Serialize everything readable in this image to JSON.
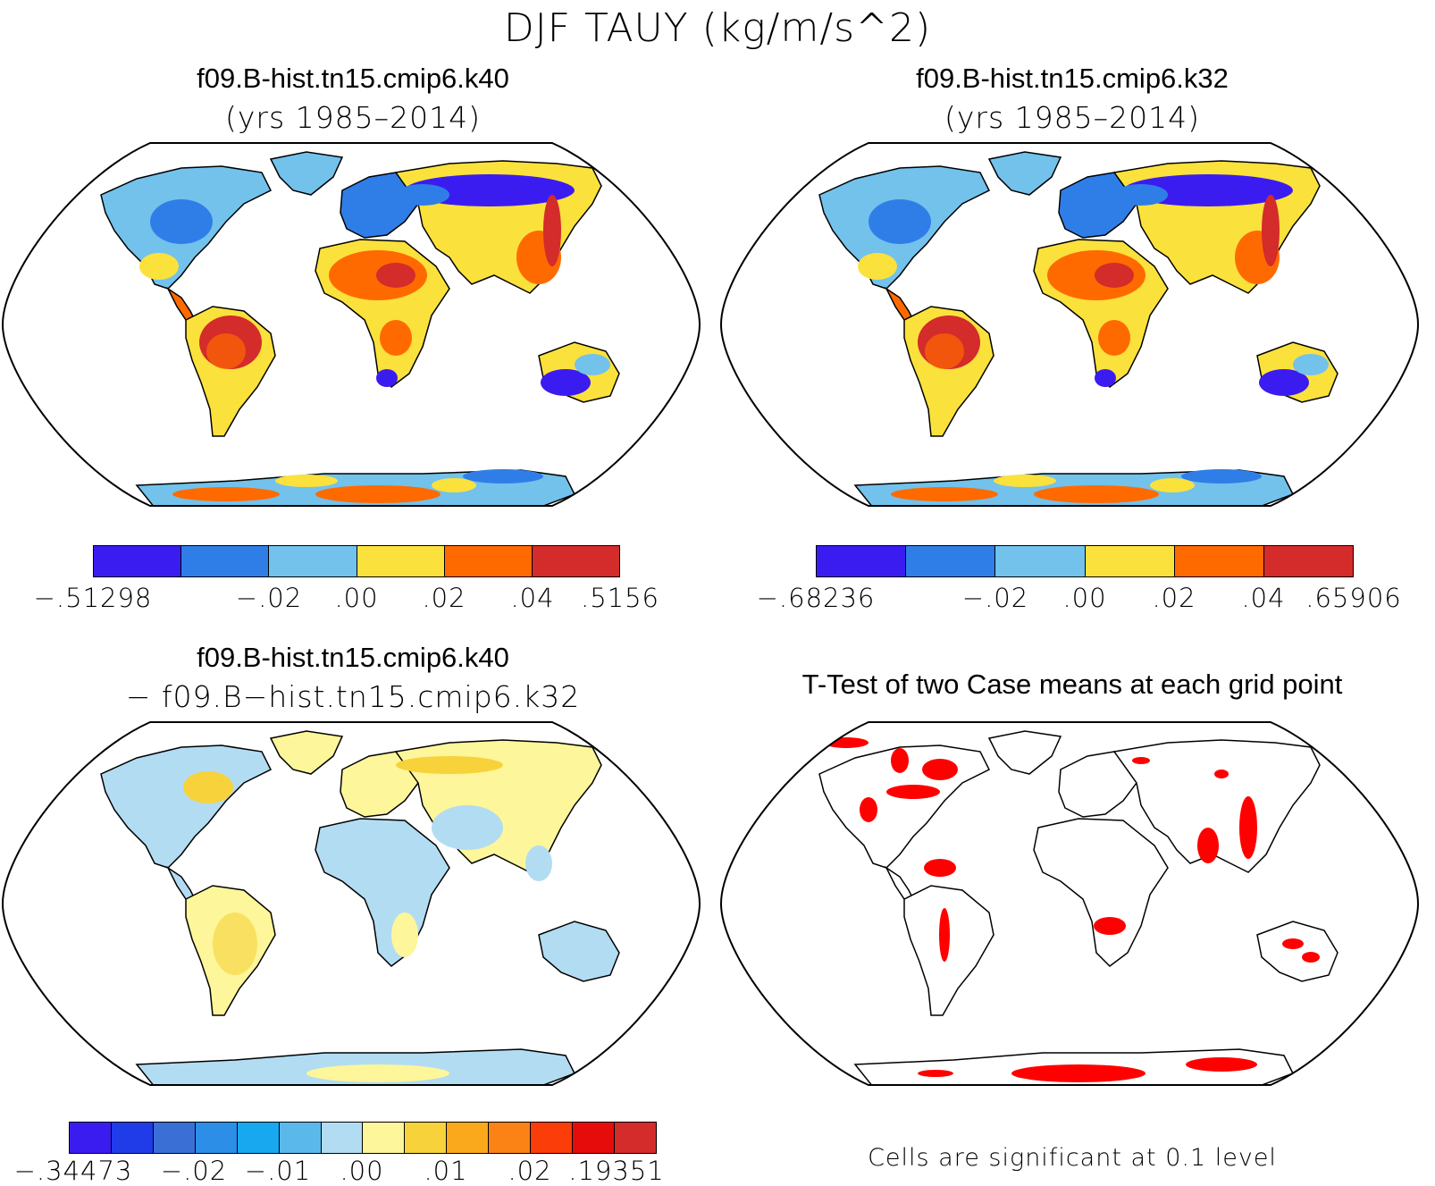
{
  "title": "DJF TAUY (kg/m/s^2)",
  "panels": {
    "k40": {
      "case": "f09.B-hist.tn15.cmip6.k40",
      "years": "(yrs 1985–2014)",
      "colorbar": {
        "colors": [
          "#3b1cf0",
          "#2f7ee8",
          "#72c2ec",
          "#fbe13c",
          "#ff6a00",
          "#d42b2b"
        ],
        "labels": [
          "−.51298",
          "−.02",
          ".00",
          ".02",
          ".04",
          ".5156"
        ]
      }
    },
    "k32": {
      "case": "f09.B-hist.tn15.cmip6.k32",
      "years": "(yrs 1985–2014)",
      "colorbar": {
        "colors": [
          "#3b1cf0",
          "#2f7ee8",
          "#72c2ec",
          "#fbe13c",
          "#ff6a00",
          "#d42b2b"
        ],
        "labels": [
          "−.68236",
          "−.02",
          ".00",
          ".02",
          ".04",
          ".65906"
        ]
      }
    },
    "diff": {
      "case": "f09.B-hist.tn15.cmip6.k40",
      "minus_case": "− f09.B−hist.tn15.cmip6.k32",
      "colorbar": {
        "colors": [
          "#3b1cf0",
          "#1f3ce8",
          "#3a6fd6",
          "#2c8ee6",
          "#17a8f0",
          "#5ab8ea",
          "#b2dcf2",
          "#fdf69a",
          "#f7d23a",
          "#fba91c",
          "#fb8316",
          "#fb3d0a",
          "#e60c0c",
          "#d42b2b"
        ],
        "labels": [
          "−.34473",
          "−.02",
          "−.01",
          ".00",
          ".01",
          ".02",
          ".19351"
        ]
      }
    },
    "ttest": {
      "title": "T-Test of two Case means at each grid point",
      "note": "Cells are significant at 0.1 level",
      "significant_color": "#ff0000"
    }
  }
}
